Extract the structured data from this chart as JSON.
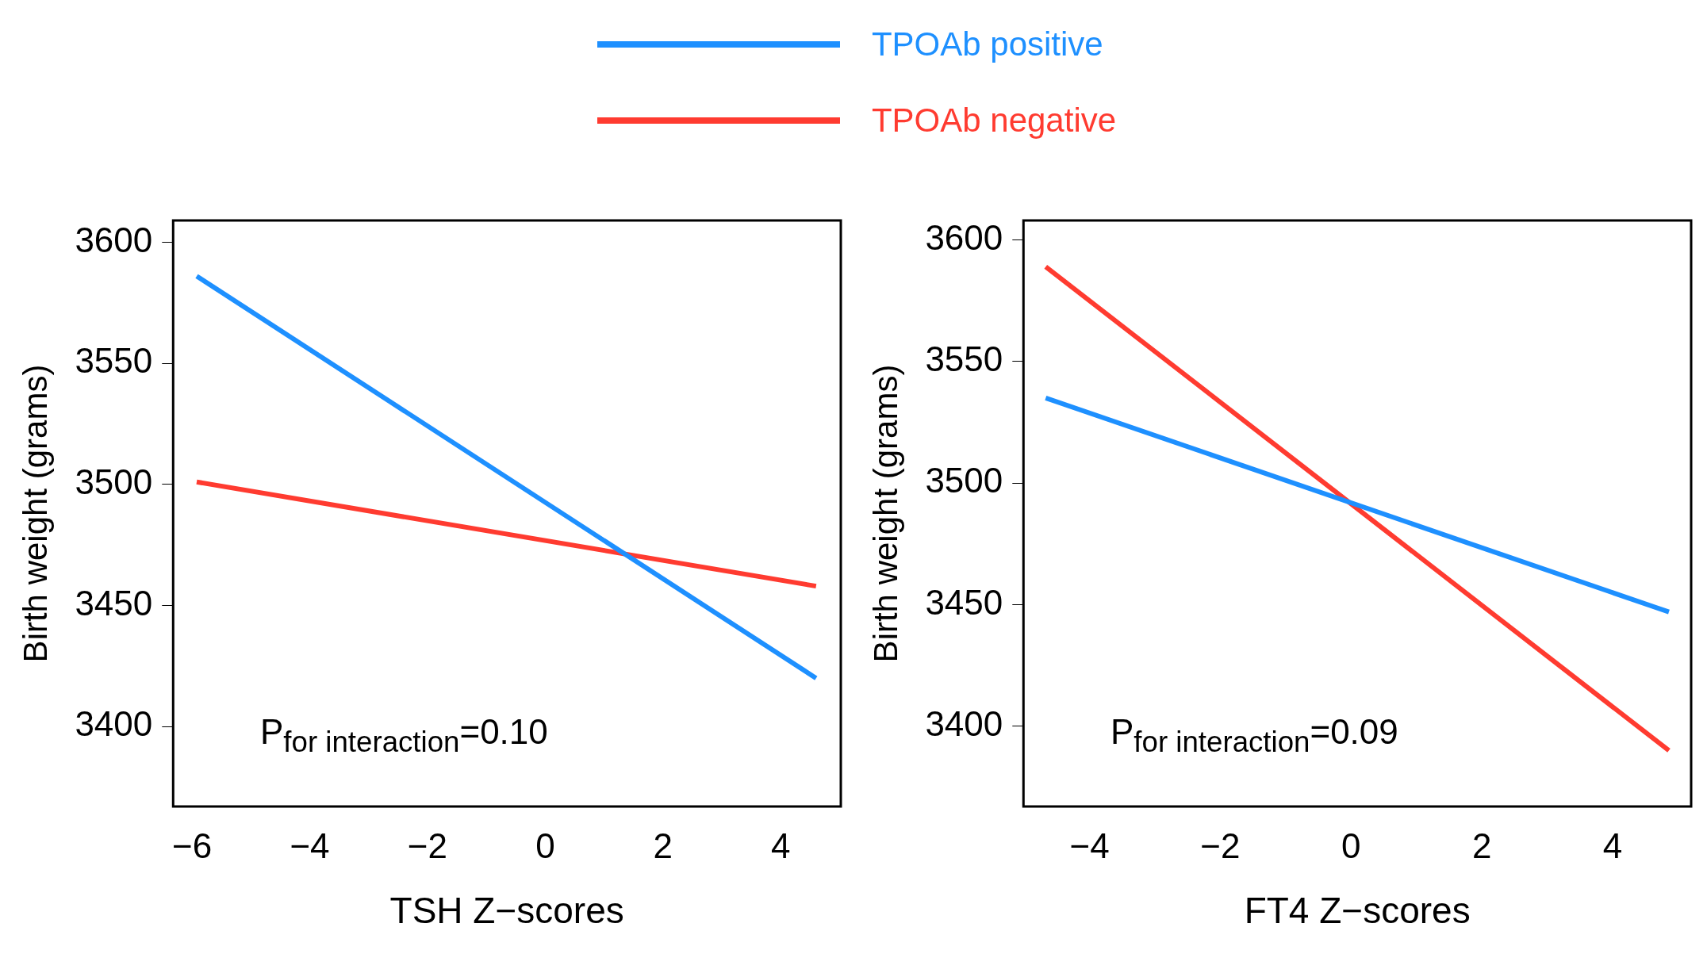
{
  "chart_data": [
    {
      "type": "line",
      "xlabel": "TSH Z−scores",
      "ylabel": "Birth weight (grams)",
      "legend": "top",
      "grid": false,
      "xlim": [
        -6.32,
        5.02
      ],
      "ylim": [
        3367,
        3609
      ],
      "xticks": [
        {
          "value": -6,
          "label": "−6"
        },
        {
          "value": -4,
          "label": "−4"
        },
        {
          "value": -2,
          "label": "−2"
        },
        0,
        2,
        4
      ],
      "yticks": [
        3400,
        3450,
        3500,
        3550,
        3600
      ],
      "annotations": [
        "P$_{for interaction}$=0.10"
      ],
      "series": [
        {
          "name": "TPOAb positive",
          "color": "#1e90ff",
          "x": [
            -5.92,
            4.6
          ],
          "values": [
            3586,
            3420
          ]
        },
        {
          "name": "TPOAb negative",
          "color": "#ff3b30",
          "x": [
            -5.92,
            4.6
          ],
          "values": [
            3501,
            3458
          ]
        }
      ]
    },
    {
      "type": "line",
      "xlabel": "FT4 Z−scores",
      "ylabel": "Birth weight (grams)",
      "legend": false,
      "grid": false,
      "xlim": [
        -5.01,
        5.2
      ],
      "ylim": [
        3367,
        3608
      ],
      "xticks": [
        {
          "value": -4,
          "label": "−4"
        },
        {
          "value": -2,
          "label": "−2"
        },
        0,
        2,
        4
      ],
      "yticks": [
        3400,
        3450,
        3500,
        3550,
        3600
      ],
      "annotations": [
        "P$_{for interaction}$=0.09"
      ],
      "series": [
        {
          "color": "#1e90ff",
          "x": [
            -4.67,
            4.86
          ],
          "values": [
            3535,
            3447
          ]
        },
        {
          "color": "#ff3b30",
          "x": [
            -4.67,
            4.86
          ],
          "values": [
            3589,
            3390
          ]
        }
      ]
    }
  ]
}
